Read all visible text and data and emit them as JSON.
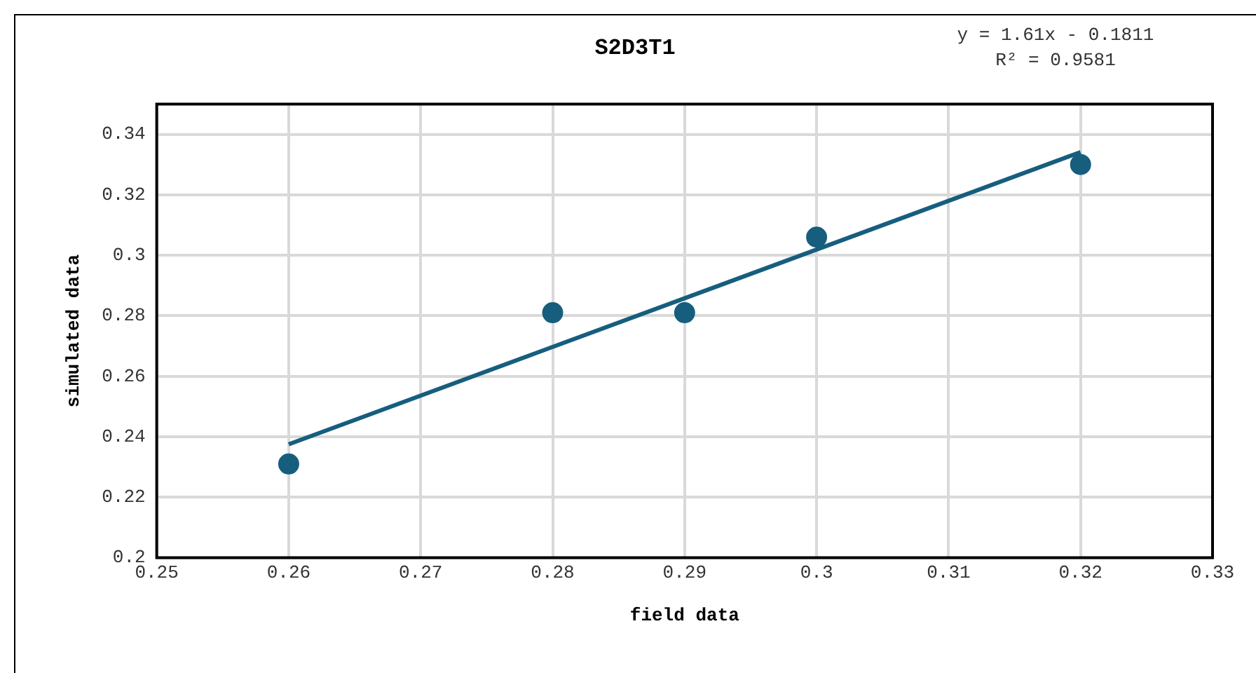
{
  "chart_data": {
    "type": "scatter",
    "title": "S2D3T1",
    "xlabel": "field data",
    "ylabel": "simulated data",
    "x": [
      0.26,
      0.28,
      0.29,
      0.3,
      0.32
    ],
    "series": [
      {
        "type": "scatter",
        "color": "#175e7e",
        "values": [
          0.231,
          0.281,
          0.281,
          0.306,
          0.33
        ],
        "marker": "circle"
      },
      {
        "type": "line",
        "color": "#175e7e",
        "x": [
          0.26,
          0.32
        ],
        "values": [
          0.2375,
          0.3341
        ],
        "marker": "none",
        "line_style": "solid"
      }
    ],
    "xlim": [
      0.25,
      0.33
    ],
    "xticks": [
      0.25,
      0.26,
      0.27,
      0.28,
      0.29,
      0.3,
      0.31,
      0.32,
      0.33
    ],
    "ylim": [
      0.2,
      0.35
    ],
    "yticks": [
      0.2,
      0.22,
      0.24,
      0.26,
      0.28,
      0.3,
      0.32,
      0.34
    ],
    "grid": true,
    "legend": false,
    "annotations": [
      "y = 1.61x - 0.1811",
      "R² = 0.9581"
    ]
  }
}
